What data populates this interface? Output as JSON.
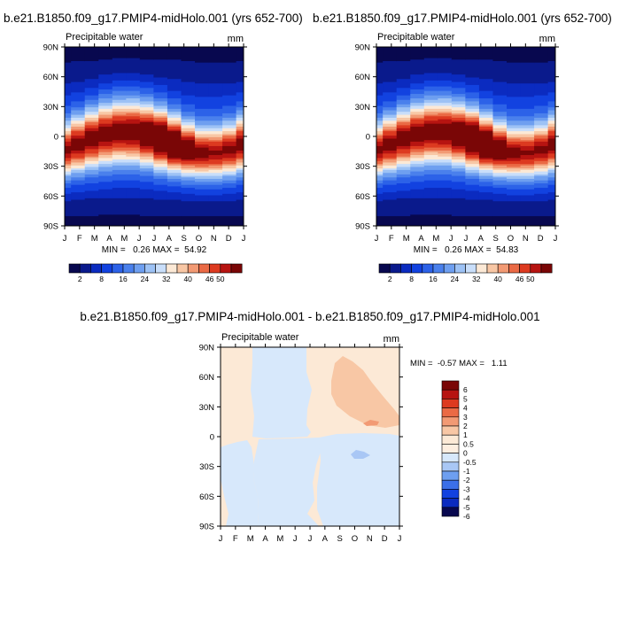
{
  "chart_data": [
    {
      "type": "heatmap",
      "title": "b.e21.B1850.f09_g17.PMIP4-midHolo.001 (yrs 652-700)",
      "left_label": "Precipitable water",
      "units": "mm",
      "xlabel": "",
      "ylabel": "",
      "x_ticks": [
        "J",
        "F",
        "M",
        "A",
        "M",
        "J",
        "J",
        "A",
        "S",
        "O",
        "N",
        "D",
        "J"
      ],
      "y_ticks": [
        "90N",
        "60N",
        "30N",
        "0",
        "30S",
        "60S",
        "90S"
      ],
      "ylim": [
        -90,
        90
      ],
      "min_max_label": "MIN =   0.26 MAX =  54.92",
      "min": 0.26,
      "max": 54.92,
      "levels": [
        2,
        5,
        8,
        12,
        16,
        20,
        24,
        28,
        32,
        36,
        40,
        43,
        46,
        50,
        53
      ],
      "colorbar_labels": [
        "2",
        "8",
        "16",
        "24",
        "32",
        "40",
        "46",
        "50"
      ]
    },
    {
      "type": "heatmap",
      "title": "b.e21.B1850.f09_g17.PMIP4-midHolo.001 (yrs 652-700)",
      "left_label": "Precipitable water",
      "units": "mm",
      "xlabel": "",
      "ylabel": "",
      "x_ticks": [
        "J",
        "F",
        "M",
        "A",
        "M",
        "J",
        "J",
        "A",
        "S",
        "O",
        "N",
        "D",
        "J"
      ],
      "y_ticks": [
        "90N",
        "60N",
        "30N",
        "0",
        "30S",
        "60S",
        "90S"
      ],
      "ylim": [
        -90,
        90
      ],
      "min_max_label": "MIN =   0.26 MAX =  54.83",
      "min": 0.26,
      "max": 54.83,
      "levels": [
        2,
        5,
        8,
        12,
        16,
        20,
        24,
        28,
        32,
        36,
        40,
        43,
        46,
        50,
        53
      ],
      "colorbar_labels": [
        "2",
        "8",
        "16",
        "24",
        "32",
        "40",
        "46",
        "50"
      ]
    },
    {
      "type": "heatmap",
      "title": "b.e21.B1850.f09_g17.PMIP4-midHolo.001 - b.e21.B1850.f09_g17.PMIP4-midHolo.001",
      "left_label": "Precipitable water",
      "units": "mm",
      "xlabel": "",
      "ylabel": "",
      "x_ticks": [
        "J",
        "F",
        "M",
        "A",
        "M",
        "J",
        "J",
        "A",
        "S",
        "O",
        "N",
        "D",
        "J"
      ],
      "y_ticks": [
        "90N",
        "60N",
        "30N",
        "0",
        "30S",
        "60S",
        "90S"
      ],
      "ylim": [
        -90,
        90
      ],
      "min_max_label": "MIN =  -0.57 MAX =   1.11",
      "min": -0.57,
      "max": 1.11,
      "colorbar_labels": [
        "6",
        "5",
        "4",
        "3",
        "2",
        "1",
        "0.5",
        "0",
        "-0.5",
        "-1",
        "-2",
        "-3",
        "-4",
        "-5",
        "-6"
      ]
    }
  ],
  "palettes": {
    "absolute": [
      "#08084f",
      "#0a1a8c",
      "#0b2bc0",
      "#1242e0",
      "#2c62e8",
      "#4a80ec",
      "#6e9ff0",
      "#9dc2f5",
      "#c9defa",
      "#fce9d6",
      "#f8c7a5",
      "#f29a74",
      "#ea6a45",
      "#dd3a20",
      "#b71411",
      "#7a0606"
    ],
    "difference": [
      "#7a0606",
      "#b71411",
      "#dd3a20",
      "#ea6a45",
      "#f29a74",
      "#f8c7a5",
      "#fce9d6",
      "#fdeee0",
      "#d7e8fb",
      "#a9c7f5",
      "#6e9ff0",
      "#3b6fe8",
      "#1242e0",
      "#0b2bc0",
      "#08084f"
    ]
  }
}
